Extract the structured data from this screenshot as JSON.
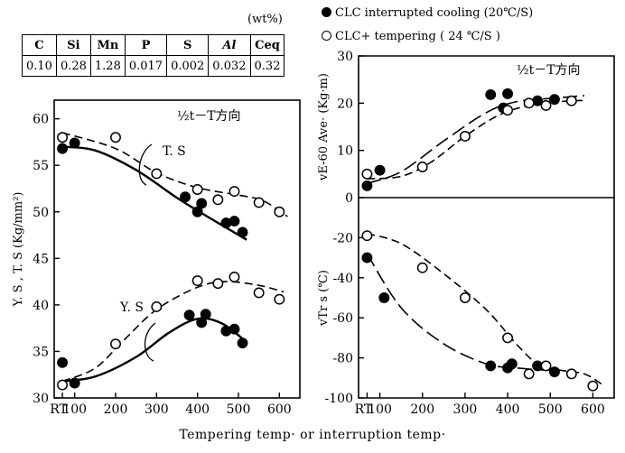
{
  "units_note": "(wt%)",
  "composition": {
    "headers": [
      "C",
      "Si",
      "Mn",
      "P",
      "S",
      "Al",
      "Ceq"
    ],
    "values": [
      "0.10",
      "0.28",
      "1.28",
      "0.017",
      "0.002",
      "0.032",
      "0.32"
    ]
  },
  "legend": [
    {
      "label": "CLC interrupted cooling (20℃/S)",
      "marker": "filled-circle"
    },
    {
      "label": "CLC+ tempering ( 24 ℃/S )",
      "marker": "open-circle"
    }
  ],
  "x_axis_label": "Tempering temp· or interruption temp·",
  "chart_data": [
    {
      "type": "scatter",
      "panel": "strength",
      "position_label": "½t－T方向",
      "ylabel": "Y. S , T. S (Kg/mm²)",
      "xlim": [
        50,
        650
      ],
      "ylim": [
        30,
        62
      ],
      "x_ticks": [
        "RT",
        "100",
        "200",
        "300",
        "400",
        "500",
        "600"
      ],
      "x_tick_values": [
        70,
        100,
        200,
        300,
        400,
        500,
        600
      ],
      "y_ticks": [
        30,
        35,
        40,
        45,
        50,
        55,
        60
      ],
      "curve_labels": [
        "T. S",
        "Y. S"
      ],
      "series": [
        {
          "group": "T. S",
          "marker": "filled",
          "x": [
            70,
            100,
            370,
            400,
            410,
            470,
            490,
            510
          ],
          "y": [
            56.8,
            57.4,
            51.6,
            50.0,
            50.9,
            48.8,
            49.0,
            47.8
          ]
        },
        {
          "group": "T. S",
          "marker": "open",
          "x": [
            70,
            200,
            300,
            400,
            450,
            490,
            550,
            600
          ],
          "y": [
            58.0,
            58.0,
            54.1,
            52.4,
            51.3,
            52.2,
            51.0,
            50.0
          ]
        },
        {
          "group": "Y. S",
          "marker": "filled",
          "x": [
            70,
            100,
            380,
            410,
            420,
            470,
            490,
            510
          ],
          "y": [
            33.8,
            31.6,
            38.9,
            38.1,
            39.0,
            37.2,
            37.4,
            35.9
          ]
        },
        {
          "group": "Y. S",
          "marker": "open",
          "x": [
            70,
            200,
            300,
            400,
            450,
            490,
            550,
            600
          ],
          "y": [
            31.4,
            35.8,
            39.8,
            42.6,
            42.3,
            43.0,
            41.3,
            40.6
          ]
        }
      ],
      "fits": [
        {
          "group": "T. S",
          "style": "solid",
          "x": [
            70,
            150,
            250,
            350,
            420,
            470,
            520
          ],
          "y": [
            57.0,
            56.6,
            54.5,
            51.5,
            49.6,
            48.3,
            47.0
          ]
        },
        {
          "group": "T. S",
          "style": "dashed",
          "x": [
            70,
            200,
            300,
            400,
            500,
            560,
            620
          ],
          "y": [
            58.5,
            56.8,
            54.2,
            52.6,
            51.8,
            51.2,
            49.5
          ]
        },
        {
          "group": "Y. S",
          "style": "solid",
          "x": [
            70,
            150,
            250,
            330,
            400,
            460,
            520
          ],
          "y": [
            31.8,
            32.3,
            34.4,
            37.0,
            38.5,
            38.0,
            36.0
          ]
        },
        {
          "group": "Y. S",
          "style": "dashed",
          "x": [
            70,
            150,
            220,
            300,
            400,
            470,
            550,
            610
          ],
          "y": [
            31.8,
            33.2,
            36.2,
            39.5,
            41.9,
            42.5,
            42.1,
            41.4
          ]
        }
      ]
    },
    {
      "type": "scatter",
      "panel": "impact",
      "position_label": "½t－T方向",
      "ylabel": "vE-60 Ave· (Kg·m)",
      "xlim": [
        50,
        650
      ],
      "ylim": [
        0,
        30
      ],
      "y_ticks": [
        0,
        10,
        20,
        30
      ],
      "series": [
        {
          "marker": "filled",
          "x": [
            70,
            100,
            360,
            390,
            400,
            470,
            510
          ],
          "y": [
            2.5,
            5.8,
            21.8,
            19.0,
            22.0,
            20.5,
            20.8
          ]
        },
        {
          "marker": "open",
          "x": [
            70,
            200,
            300,
            400,
            450,
            490,
            550
          ],
          "y": [
            5.0,
            6.5,
            13.0,
            18.5,
            20.0,
            19.5,
            20.5
          ]
        }
      ],
      "fits": [
        {
          "style": "long-dash",
          "x": [
            70,
            150,
            250,
            350,
            420,
            500,
            580
          ],
          "y": [
            3.0,
            5.5,
            12.0,
            18.0,
            20.3,
            21.0,
            21.6
          ]
        },
        {
          "style": "dashed",
          "x": [
            70,
            150,
            220,
            300,
            380,
            450,
            520,
            580
          ],
          "y": [
            4.0,
            4.5,
            7.5,
            13.0,
            17.5,
            19.5,
            20.3,
            20.6
          ]
        }
      ]
    },
    {
      "type": "scatter",
      "panel": "transition",
      "ylabel": "vTr s (℃)",
      "xlim": [
        50,
        650
      ],
      "ylim": [
        -100,
        0
      ],
      "x_ticks": [
        "RT",
        "100",
        "200",
        "300",
        "400",
        "500",
        "600"
      ],
      "x_tick_values": [
        70,
        100,
        200,
        300,
        400,
        500,
        600
      ],
      "y_ticks": [
        -100,
        -80,
        -60,
        -40,
        -20
      ],
      "series": [
        {
          "marker": "filled",
          "x": [
            70,
            110,
            360,
            400,
            410,
            470,
            510
          ],
          "y": [
            -30,
            -50,
            -84,
            -85,
            -83,
            -84,
            -87
          ]
        },
        {
          "marker": "open",
          "x": [
            70,
            200,
            300,
            400,
            450,
            490,
            550,
            600
          ],
          "y": [
            -19,
            -35,
            -50,
            -70,
            -88,
            -84,
            -88,
            -94
          ]
        }
      ],
      "fits": [
        {
          "style": "long-dash",
          "x": [
            70,
            150,
            250,
            350,
            420,
            480,
            520
          ],
          "y": [
            -28,
            -55,
            -73,
            -83,
            -85,
            -86,
            -86
          ]
        },
        {
          "style": "dashed",
          "x": [
            70,
            150,
            250,
            350,
            420,
            470,
            520,
            580,
            620
          ],
          "y": [
            -18,
            -23,
            -38,
            -56,
            -73,
            -83,
            -86,
            -88,
            -93
          ]
        }
      ]
    }
  ]
}
